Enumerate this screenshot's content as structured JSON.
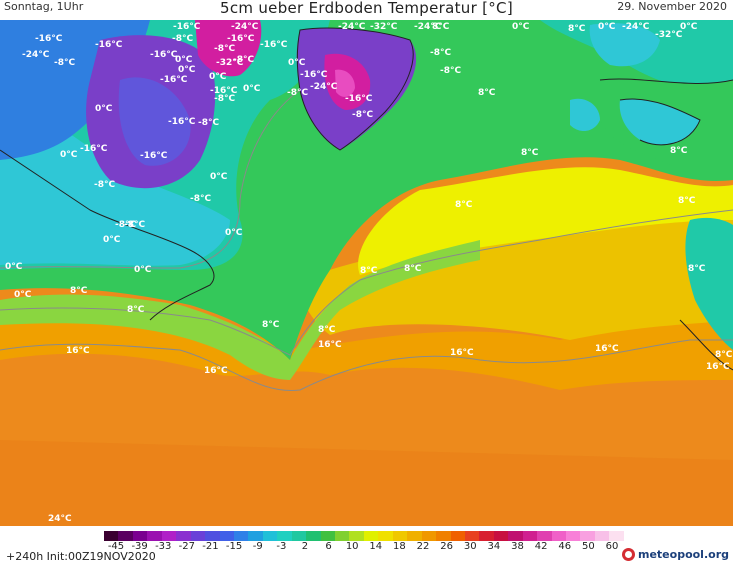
{
  "header": {
    "day_time": "Sonntag, 1Uhr",
    "title": "5cm ueber Erdboden Temperatur [°C]",
    "date": "29. November 2020"
  },
  "map": {
    "colors": {
      "deep_purple": "#8a1ca8",
      "purple": "#7a3fc8",
      "blue_violet": "#5a5ce0",
      "blue": "#2f7fe0",
      "cyan": "#2fc7d6",
      "teal": "#20c9a8",
      "green": "#34c85a",
      "light_green": "#8ad640",
      "yellow": "#eef000",
      "gold": "#ecc200",
      "orange_light": "#f0a000",
      "orange": "#ed8a1c",
      "magenta": "#d21ea0",
      "pink": "#e84cc0",
      "coast": "#222222",
      "isoline": "#8a8a8a"
    },
    "labels": [
      {
        "text": "-16°C"
      },
      {
        "text": "-24°C"
      },
      {
        "text": "-24°C"
      },
      {
        "text": "-32°C"
      },
      {
        "text": "-24°C"
      },
      {
        "text": "-16°C"
      },
      {
        "text": "-16°C"
      },
      {
        "text": "-16°C"
      },
      {
        "text": "-8°C"
      },
      {
        "text": "-8°C"
      },
      {
        "text": "-32°C"
      },
      {
        "text": "-8°C"
      },
      {
        "text": "0°C"
      },
      {
        "text": "-16°C"
      },
      {
        "text": "-24°C"
      },
      {
        "text": "-8°C"
      },
      {
        "text": "0°C"
      },
      {
        "text": "-24°C"
      },
      {
        "text": "-32°C"
      },
      {
        "text": "-24°C"
      },
      {
        "text": "-16°C"
      },
      {
        "text": "0°C"
      },
      {
        "text": "0°C"
      },
      {
        "text": "-16°C"
      },
      {
        "text": "-8°C"
      },
      {
        "text": "0°C"
      },
      {
        "text": "-16°C"
      },
      {
        "text": "0°C"
      },
      {
        "text": "-8°C"
      },
      {
        "text": "-16°C"
      },
      {
        "text": "-8°C"
      },
      {
        "text": "-8°C"
      },
      {
        "text": "-16°C"
      },
      {
        "text": "0°C"
      },
      {
        "text": "-8°C"
      },
      {
        "text": "-16°C"
      },
      {
        "text": "-8°C"
      },
      {
        "text": "0°C"
      },
      {
        "text": "-8°C"
      },
      {
        "text": "-8°C"
      },
      {
        "text": "-16°C"
      },
      {
        "text": "-8°C"
      },
      {
        "text": "0°C"
      },
      {
        "text": "8°C"
      },
      {
        "text": "0°C"
      },
      {
        "text": "-16°C"
      },
      {
        "text": "0°C"
      },
      {
        "text": "8°C"
      },
      {
        "text": "8°C"
      },
      {
        "text": "8°C"
      },
      {
        "text": "8°C"
      },
      {
        "text": "0°C"
      },
      {
        "text": "8°C"
      },
      {
        "text": "-8°C"
      },
      {
        "text": "0°C"
      },
      {
        "text": "0°C"
      },
      {
        "text": "0°C"
      },
      {
        "text": "8°C"
      },
      {
        "text": "0°C"
      },
      {
        "text": "8°C"
      },
      {
        "text": "8°C"
      },
      {
        "text": "8°C"
      },
      {
        "text": "8°C"
      },
      {
        "text": "8°C"
      },
      {
        "text": "16°C"
      },
      {
        "text": "16°C"
      },
      {
        "text": "16°C"
      },
      {
        "text": "16°C"
      },
      {
        "text": "16°C"
      },
      {
        "text": "8°C"
      },
      {
        "text": "16°C"
      },
      {
        "text": "24°C"
      },
      {
        "text": "8°C"
      },
      {
        "text": "8°C"
      }
    ]
  },
  "legend": {
    "colors": [
      "#3a0030",
      "#5a0060",
      "#7a0090",
      "#9a10b0",
      "#b020c8",
      "#8a30d0",
      "#6a40d8",
      "#5050e0",
      "#4060e8",
      "#3080e8",
      "#20a0e0",
      "#20c0d8",
      "#20d0c0",
      "#20c8a0",
      "#20c070",
      "#40c040",
      "#80d030",
      "#b0e020",
      "#e0f000",
      "#f0e000",
      "#f0c800",
      "#f0b000",
      "#f09800",
      "#f08000",
      "#f06000",
      "#e84020",
      "#d82030",
      "#c81040",
      "#c01070",
      "#d02090",
      "#e040b0",
      "#f060c8",
      "#f880d8",
      "#f8a0e0",
      "#f8c0e8",
      "#fce0f0"
    ],
    "ticks": [
      "-45",
      "-39",
      "-33",
      "-27",
      "-21",
      "-15",
      "-9",
      "-3",
      "2",
      "6",
      "10",
      "14",
      "18",
      "22",
      "26",
      "30",
      "34",
      "38",
      "42",
      "46",
      "50",
      "60"
    ]
  },
  "footer": {
    "init": "+240h  Init:00Z19NOV2020",
    "brand": "meteopool.org"
  }
}
